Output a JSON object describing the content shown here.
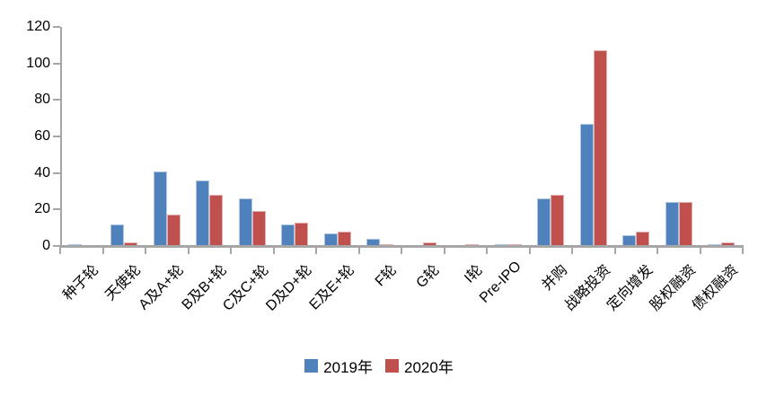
{
  "chart_data": {
    "type": "bar",
    "title": "",
    "xlabel": "",
    "ylabel": "",
    "categories": [
      "种子轮",
      "天使轮",
      "A及A+轮",
      "B及B+轮",
      "C及C+轮",
      "D及D+轮",
      "E及E+轮",
      "F轮",
      "G轮",
      "I轮",
      "Pre-IPO",
      "并购",
      "战略投资",
      "定向增发",
      "股权融资",
      "债权融资"
    ],
    "series": [
      {
        "name": "2019年",
        "color": "#4F81BD",
        "values": [
          1,
          12,
          41,
          36,
          26,
          12,
          7,
          4,
          0,
          0,
          1,
          26,
          67,
          6,
          24,
          1
        ]
      },
      {
        "name": "2020年",
        "color": "#C0504D",
        "values": [
          0,
          2,
          17,
          28,
          19,
          13,
          8,
          1,
          2,
          1,
          1,
          28,
          107,
          8,
          24,
          2
        ]
      }
    ],
    "ylim": [
      0,
      120
    ],
    "yticks": [
      0,
      20,
      40,
      60,
      80,
      100,
      120
    ],
    "grid": false,
    "legend_position": "bottom",
    "axis_color": "#A6A6A6",
    "label_rotation_deg": 45
  }
}
